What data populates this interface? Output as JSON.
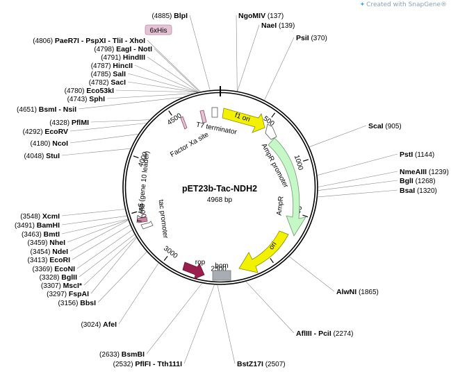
{
  "watermark": "Created with SnapGene®",
  "plasmid": {
    "name": "pET23b-Tac-NDH2",
    "size_label": "4968 bp",
    "length": 4968
  },
  "ticks": [
    "500",
    "1000",
    "1500",
    "2000",
    "2500",
    "3000",
    "3500",
    "4000",
    "4500"
  ],
  "tag_label": "6xHis",
  "feature_labels": {
    "f1_ori": "f1 ori",
    "ampr_promoter": "AmpR promoter",
    "ampr": "AmpR",
    "ori": "ori",
    "bom": "bom",
    "rop": "rop",
    "t7_terminator": "T7 terminator",
    "factor_xa": "Factor Xa site",
    "tac_promoter": "tac promoter",
    "t7_tag": "T7 tag (gene 10 leader)"
  },
  "sites_right": [
    {
      "name": "NgoMIV",
      "pos": "(137)"
    },
    {
      "name": "NaeI",
      "pos": "(139)"
    },
    {
      "name": "PsiI",
      "pos": "(370)"
    },
    {
      "name": "ScaI",
      "pos": "(905)"
    },
    {
      "name": "PstI",
      "pos": "(1144)"
    },
    {
      "name": "NmeAIII",
      "pos": "(1239)"
    },
    {
      "name": "BglI",
      "pos": "(1268)"
    },
    {
      "name": "BsaI",
      "pos": "(1320)"
    },
    {
      "name": "AlwNI",
      "pos": "(1865)"
    },
    {
      "name": "AflIII - PciI",
      "pos": "(2274)"
    },
    {
      "name": "BstZ17I",
      "pos": "(2507)"
    }
  ],
  "sites_left": [
    {
      "name": "BlpI",
      "pos": "(4885)"
    },
    {
      "name": "PaeR7I - PspXI - TliI - XhoI",
      "pos": "(4806)"
    },
    {
      "name": "EagI - NotI",
      "pos": "(4798)"
    },
    {
      "name": "HindIII",
      "pos": "(4791)"
    },
    {
      "name": "HincII",
      "pos": "(4787)"
    },
    {
      "name": "SalI",
      "pos": "(4785)"
    },
    {
      "name": "SacI",
      "pos": "(4782)"
    },
    {
      "name": "Eco53kI",
      "pos": "(4780)"
    },
    {
      "name": "SphI",
      "pos": "(4743)"
    },
    {
      "name": "BsmI - NsiI",
      "pos": "(4651)"
    },
    {
      "name": "PflMI",
      "pos": "(4328)"
    },
    {
      "name": "EcoRV",
      "pos": "(4292)"
    },
    {
      "name": "NcoI",
      "pos": "(4180)"
    },
    {
      "name": "StuI",
      "pos": "(4048)"
    },
    {
      "name": "XcmI",
      "pos": "(3548)"
    },
    {
      "name": "BamHI",
      "pos": "(3491)"
    },
    {
      "name": "BmtI",
      "pos": "(3463)"
    },
    {
      "name": "NheI",
      "pos": "(3459)"
    },
    {
      "name": "NdeI",
      "pos": "(3454)"
    },
    {
      "name": "EcoRI",
      "pos": "(3413)"
    },
    {
      "name": "EcoNI",
      "pos": "(3369)"
    },
    {
      "name": "BglII",
      "pos": "(3328)"
    },
    {
      "name": "MscI*",
      "pos": "(3307)"
    },
    {
      "name": "FspAI",
      "pos": "(3297)"
    },
    {
      "name": "BbsI",
      "pos": "(3156)"
    },
    {
      "name": "AfeI",
      "pos": "(3024)"
    },
    {
      "name": "BsmBI",
      "pos": "(2633)"
    },
    {
      "name": "PflFI - Tth111I",
      "pos": "(2532)"
    }
  ],
  "colors": {
    "backbone": "#000000",
    "f1_ori": "#f2f200",
    "ampr": "#c6f7c6",
    "ori": "#f2f200",
    "rop": "#9b1f4e",
    "bom": "#a8adb4",
    "his_tag_fill": "#e6c3d4",
    "his_tag_border": "#b88aa3",
    "muted_site": "#8a8a8a",
    "leader": "#888888"
  }
}
